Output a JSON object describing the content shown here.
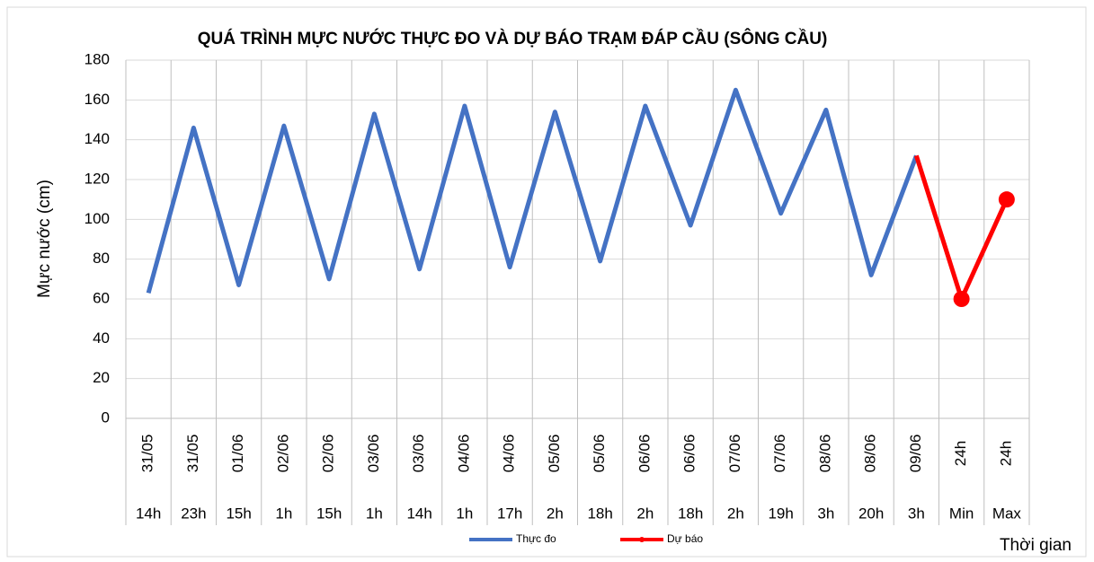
{
  "chart_data": {
    "type": "line",
    "title": "QUÁ TRÌNH MỰC NƯỚC THỰC ĐO VÀ DỰ BÁO TRẠM ĐÁP CẦU (SÔNG CẦU)",
    "ylabel": "Mực nước (cm)",
    "xlabel": "Thời gian",
    "categories": [
      "31/05",
      "31/05",
      "01/06",
      "02/06",
      "02/06",
      "03/06",
      "03/06",
      "04/06",
      "04/06",
      "05/06",
      "05/06",
      "06/06",
      "06/06",
      "07/06",
      "07/06",
      "08/06",
      "08/06",
      "09/06",
      "24h",
      "24h"
    ],
    "subcategories": [
      "14h",
      "23h",
      "15h",
      "1h",
      "15h",
      "1h",
      "14h",
      "1h",
      "17h",
      "2h",
      "18h",
      "2h",
      "18h",
      "2h",
      "19h",
      "3h",
      "20h",
      "3h",
      "Min",
      "Max"
    ],
    "series": [
      {
        "name": "Thực đo",
        "color": "#4472c4",
        "marker": false,
        "values": [
          63,
          146,
          67,
          147,
          70,
          153,
          75,
          157,
          76,
          154,
          79,
          157,
          97,
          165,
          103,
          155,
          72,
          132,
          null,
          null
        ]
      },
      {
        "name": "Dự báo",
        "color": "#ff0000",
        "marker": true,
        "values": [
          null,
          null,
          null,
          null,
          null,
          null,
          null,
          null,
          null,
          null,
          null,
          null,
          null,
          null,
          null,
          null,
          null,
          132,
          60,
          110
        ]
      }
    ],
    "ylim": [
      0,
      180
    ],
    "yticks": [
      0,
      20,
      40,
      60,
      80,
      100,
      120,
      140,
      160,
      180
    ],
    "grid": true,
    "legend": "bottom"
  }
}
